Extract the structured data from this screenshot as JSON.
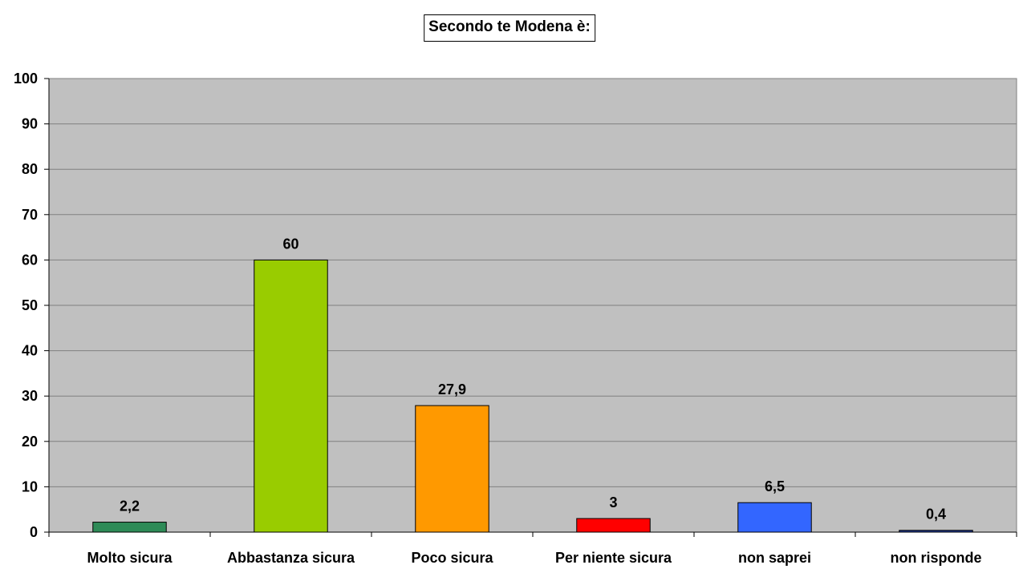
{
  "chart_data": {
    "type": "bar",
    "title": "Secondo te Modena è:",
    "categories": [
      "Molto sicura",
      "Abbastanza sicura",
      "Poco sicura",
      "Per niente sicura",
      "non saprei",
      "non risponde"
    ],
    "values": [
      2.2,
      60,
      27.9,
      3,
      6.5,
      0.4
    ],
    "value_labels": [
      "2,2",
      "60",
      "27,9",
      "3",
      "6,5",
      "0,4"
    ],
    "bar_colors": [
      "#2e8b57",
      "#99cc00",
      "#ff9900",
      "#ff0000",
      "#3366ff",
      "#1f3a93"
    ],
    "plot_background": "#c0c0c0",
    "ylim": [
      0,
      100
    ],
    "yticks": [
      0,
      10,
      20,
      30,
      40,
      50,
      60,
      70,
      80,
      90,
      100
    ],
    "grid": true,
    "legend": "none",
    "xlabel": "",
    "ylabel": ""
  }
}
